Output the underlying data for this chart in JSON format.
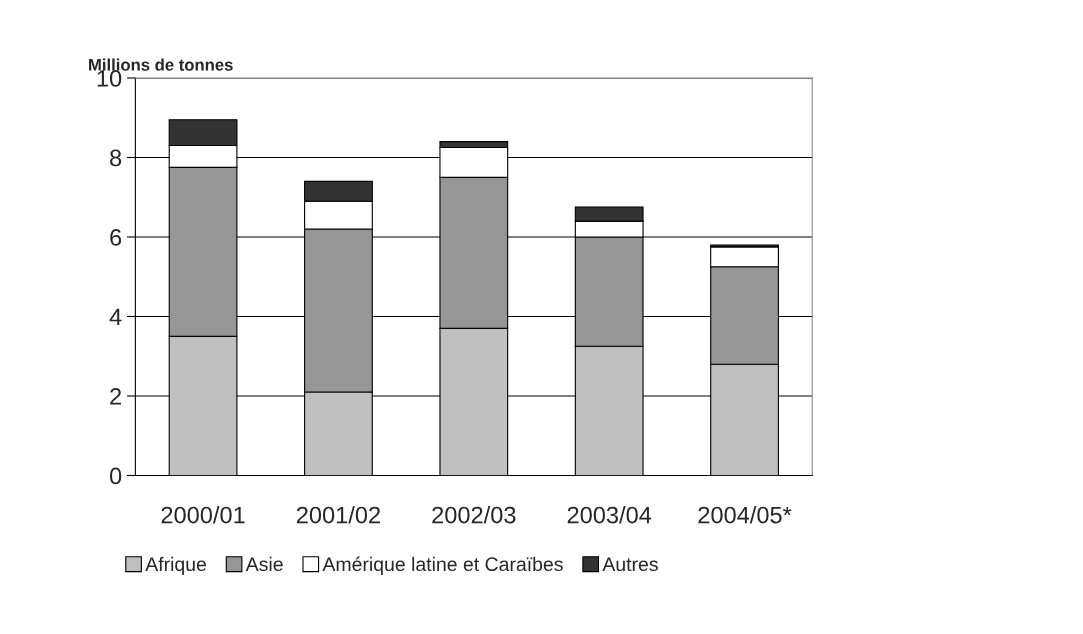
{
  "chart_data": {
    "type": "bar",
    "stacked": true,
    "ylabel": "Millions de tonnes",
    "categories": [
      "2000/01",
      "2001/02",
      "2002/03",
      "2003/04",
      "2004/05*"
    ],
    "series": [
      {
        "name": "Afrique",
        "color": "#c0c0c0",
        "values": [
          3.5,
          2.1,
          3.7,
          3.25,
          2.8
        ]
      },
      {
        "name": "Asie",
        "color": "#969696",
        "values": [
          4.25,
          4.1,
          3.8,
          2.75,
          2.45
        ]
      },
      {
        "name": "Amérique latine et Caraïbes",
        "color": "#ffffff",
        "values": [
          0.55,
          0.7,
          0.75,
          0.4,
          0.5
        ]
      },
      {
        "name": "Autres",
        "color": "#333333",
        "values": [
          0.65,
          0.5,
          0.15,
          0.35,
          0.05
        ]
      }
    ],
    "ylim": [
      0,
      10
    ],
    "yticks": [
      0,
      2,
      4,
      6,
      8,
      10
    ],
    "grid": "y",
    "legend": "bottom"
  }
}
